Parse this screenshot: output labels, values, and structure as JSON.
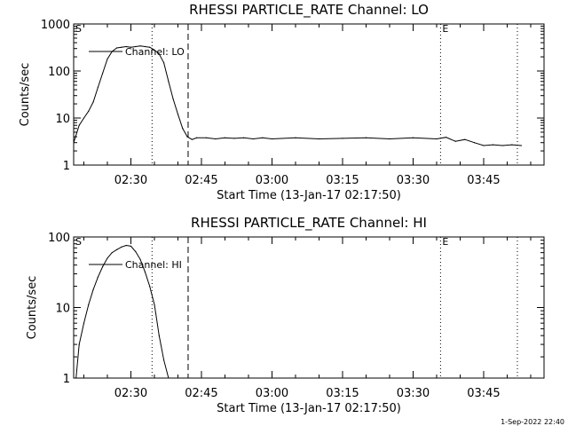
{
  "stamp": "1-Sep-2022 22:40",
  "chart_data": [
    {
      "type": "line",
      "title": "RHESSI PARTICLE_RATE Channel: LO",
      "xlabel": "Start Time (13-Jan-17 02:17:50)",
      "ylabel": "Counts/sec",
      "y_scale": "log",
      "ylim": [
        1,
        1000
      ],
      "xlim": [
        "02:17:50",
        "03:57:50"
      ],
      "x_ticks": [
        "02:30",
        "02:45",
        "03:00",
        "03:15",
        "03:30",
        "03:45"
      ],
      "y_ticks": [
        "1",
        "10",
        "100",
        "1000"
      ],
      "markers": [
        {
          "label": "S",
          "x": "02:17:50"
        },
        {
          "label": "E",
          "x": "03:35:50"
        }
      ],
      "vlines": [
        {
          "x": "02:34:30",
          "style": "dotted"
        },
        {
          "x": "02:42:10",
          "style": "dashed"
        },
        {
          "x": "03:35:50",
          "style": "dotted"
        },
        {
          "x": "03:52:10",
          "style": "dotted"
        }
      ],
      "legend": {
        "placement": "top-left",
        "entries": [
          "Channel: LO"
        ]
      },
      "grid": false,
      "series": [
        {
          "name": "Channel: LO",
          "x": [
            "02:17:50",
            "02:19:00",
            "02:20:00",
            "02:21:00",
            "02:22:00",
            "02:23:00",
            "02:24:00",
            "02:25:00",
            "02:26:00",
            "02:27:00",
            "02:28:00",
            "02:29:00",
            "02:30:00",
            "02:31:00",
            "02:32:00",
            "02:33:00",
            "02:34:00",
            "02:35:00",
            "02:36:00",
            "02:37:00",
            "02:38:00",
            "02:39:00",
            "02:40:00",
            "02:41:00",
            "02:42:00",
            "02:43:00",
            "02:44:00",
            "02:46:00",
            "02:48:00",
            "02:50:00",
            "02:52:00",
            "02:54:00",
            "02:56:00",
            "02:58:00",
            "03:00:00",
            "03:05:00",
            "03:10:00",
            "03:15:00",
            "03:20:00",
            "03:25:00",
            "03:30:00",
            "03:35:00",
            "03:37:00",
            "03:39:00",
            "03:41:00",
            "03:43:00",
            "03:45:00",
            "03:47:00",
            "03:49:00",
            "03:51:00",
            "03:53:00"
          ],
          "y": [
            3,
            7,
            10,
            14,
            22,
            45,
            90,
            180,
            260,
            310,
            320,
            330,
            320,
            330,
            340,
            330,
            320,
            280,
            230,
            150,
            60,
            25,
            12,
            6,
            4,
            3.5,
            3.8,
            3.8,
            3.6,
            3.8,
            3.7,
            3.8,
            3.6,
            3.8,
            3.6,
            3.8,
            3.6,
            3.7,
            3.8,
            3.6,
            3.8,
            3.6,
            3.9,
            3.2,
            3.5,
            3.0,
            2.6,
            2.7,
            2.6,
            2.7,
            2.6
          ]
        }
      ]
    },
    {
      "type": "line",
      "title": "RHESSI PARTICLE_RATE Channel: HI",
      "xlabel": "Start Time (13-Jan-17 02:17:50)",
      "ylabel": "Counts/sec",
      "y_scale": "log",
      "ylim": [
        1,
        100
      ],
      "xlim": [
        "02:17:50",
        "03:57:50"
      ],
      "x_ticks": [
        "02:30",
        "02:45",
        "03:00",
        "03:15",
        "03:30",
        "03:45"
      ],
      "y_ticks": [
        "1",
        "10",
        "100"
      ],
      "markers": [
        {
          "label": "S",
          "x": "02:17:50"
        },
        {
          "label": "E",
          "x": "03:35:50"
        }
      ],
      "vlines": [
        {
          "x": "02:34:30",
          "style": "dotted"
        },
        {
          "x": "02:42:10",
          "style": "dashed"
        },
        {
          "x": "03:35:50",
          "style": "dotted"
        },
        {
          "x": "03:52:10",
          "style": "dotted"
        }
      ],
      "legend": {
        "placement": "top-left",
        "entries": [
          "Channel: HI"
        ]
      },
      "grid": false,
      "series": [
        {
          "name": "Channel: HI",
          "x": [
            "02:18:20",
            "02:19:00",
            "02:20:00",
            "02:21:00",
            "02:22:00",
            "02:23:00",
            "02:24:00",
            "02:25:00",
            "02:26:00",
            "02:27:00",
            "02:28:00",
            "02:29:00",
            "02:30:00",
            "02:31:00",
            "02:32:00",
            "02:33:00",
            "02:34:00",
            "02:35:00",
            "02:36:00",
            "02:37:00",
            "02:38:00"
          ],
          "y": [
            1,
            3,
            6,
            11,
            18,
            27,
            38,
            50,
            60,
            66,
            72,
            76,
            74,
            62,
            48,
            32,
            20,
            11,
            4,
            1.8,
            1
          ]
        }
      ]
    }
  ]
}
